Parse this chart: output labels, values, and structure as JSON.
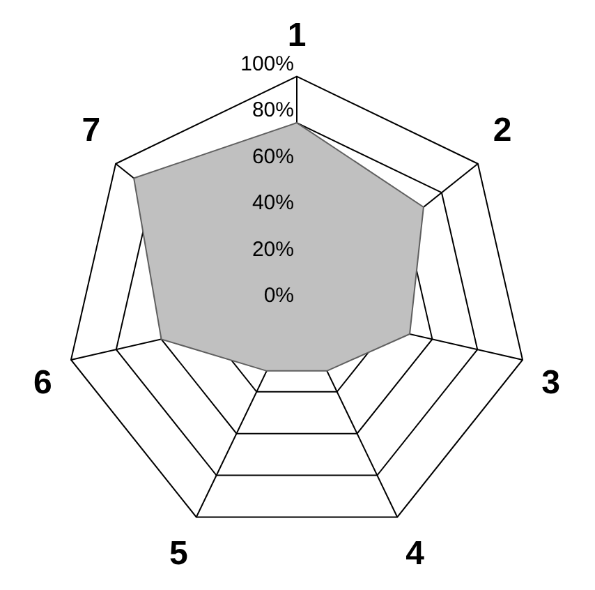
{
  "chart_data": {
    "type": "radar",
    "categories": [
      "1",
      "2",
      "3",
      "4",
      "5",
      "6",
      "7"
    ],
    "series": [
      {
        "color": "#c0c0c0",
        "values": [
          80,
          70,
          50,
          30,
          30,
          60,
          90
        ]
      }
    ],
    "ylim": [
      0,
      100
    ],
    "yticks": [
      {
        "value": 0,
        "label": "0%"
      },
      {
        "value": 20,
        "label": "20%"
      },
      {
        "value": 40,
        "label": "40%"
      },
      {
        "value": 60,
        "label": "60%"
      },
      {
        "value": 80,
        "label": "80%"
      },
      {
        "value": 100,
        "label": "100%"
      }
    ],
    "grid": true,
    "legend": false,
    "marker": "none"
  }
}
